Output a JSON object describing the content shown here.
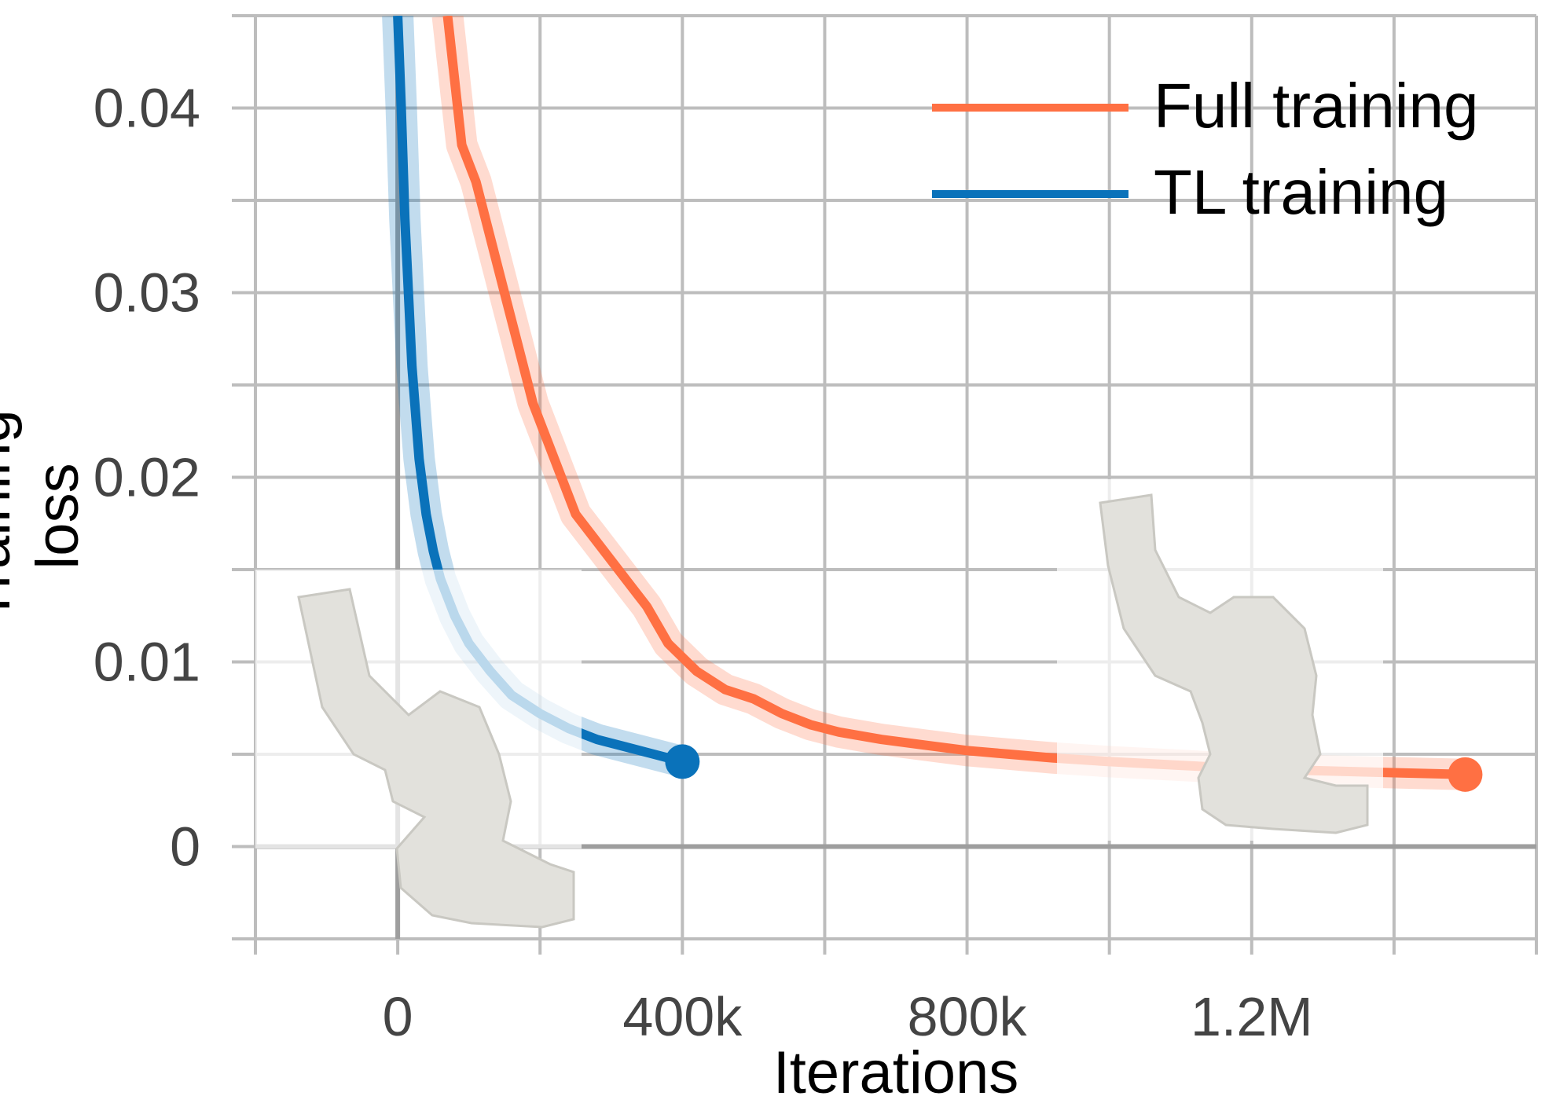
{
  "chart_data": {
    "type": "line",
    "xlabel": "Iterations",
    "ylabel": "Training loss",
    "xlim": [
      -200000,
      1600000
    ],
    "ylim": [
      -0.005,
      0.045
    ],
    "grid": true,
    "legend_position": "top-right",
    "x_ticks": [
      {
        "value": 0,
        "label": "0"
      },
      {
        "value": 400000,
        "label": "400k"
      },
      {
        "value": 800000,
        "label": "800k"
      },
      {
        "value": 1200000,
        "label": "1.2M"
      }
    ],
    "y_ticks": [
      {
        "value": 0,
        "label": "0"
      },
      {
        "value": 0.01,
        "label": "0.01"
      },
      {
        "value": 0.02,
        "label": "0.02"
      },
      {
        "value": 0.03,
        "label": "0.03"
      },
      {
        "value": 0.04,
        "label": "0.04"
      }
    ],
    "series": [
      {
        "name": "Full training",
        "color": "#FF7043",
        "x": [
          70000,
          90000,
          110000,
          130000,
          150000,
          170000,
          190000,
          210000,
          230000,
          250000,
          270000,
          290000,
          310000,
          330000,
          350000,
          380000,
          420000,
          460000,
          500000,
          540000,
          580000,
          620000,
          680000,
          740000,
          800000,
          860000,
          920000,
          1000000,
          1100000,
          1200000,
          1300000,
          1400000,
          1500000
        ],
        "values": [
          0.045,
          0.038,
          0.036,
          0.033,
          0.03,
          0.027,
          0.024,
          0.022,
          0.02,
          0.018,
          0.017,
          0.016,
          0.015,
          0.014,
          0.013,
          0.011,
          0.0095,
          0.0085,
          0.008,
          0.0072,
          0.0066,
          0.0062,
          0.0058,
          0.0055,
          0.0052,
          0.005,
          0.0048,
          0.0046,
          0.0044,
          0.0042,
          0.0041,
          0.004,
          0.0039
        ],
        "end_marker": true
      },
      {
        "name": "TL training",
        "color": "#0A72BA",
        "x": [
          0,
          5000,
          10000,
          15000,
          20000,
          30000,
          40000,
          50000,
          60000,
          80000,
          100000,
          130000,
          160000,
          200000,
          240000,
          280000,
          320000,
          360000,
          400000
        ],
        "values": [
          0.045,
          0.04,
          0.034,
          0.03,
          0.026,
          0.021,
          0.018,
          0.016,
          0.0145,
          0.0125,
          0.011,
          0.0095,
          0.0082,
          0.0072,
          0.0064,
          0.0058,
          0.0054,
          0.005,
          0.0046
        ],
        "end_marker": true
      }
    ]
  },
  "legend": {
    "items": [
      {
        "label": "Full training",
        "color": "#FF7043"
      },
      {
        "label": "TL training",
        "color": "#0A72BA"
      }
    ]
  },
  "colors": {
    "grid": "#BDBDBD",
    "axis_zero": "#9E9E9E",
    "tick_text": "#444444",
    "vessel": "#E2E1DC"
  }
}
